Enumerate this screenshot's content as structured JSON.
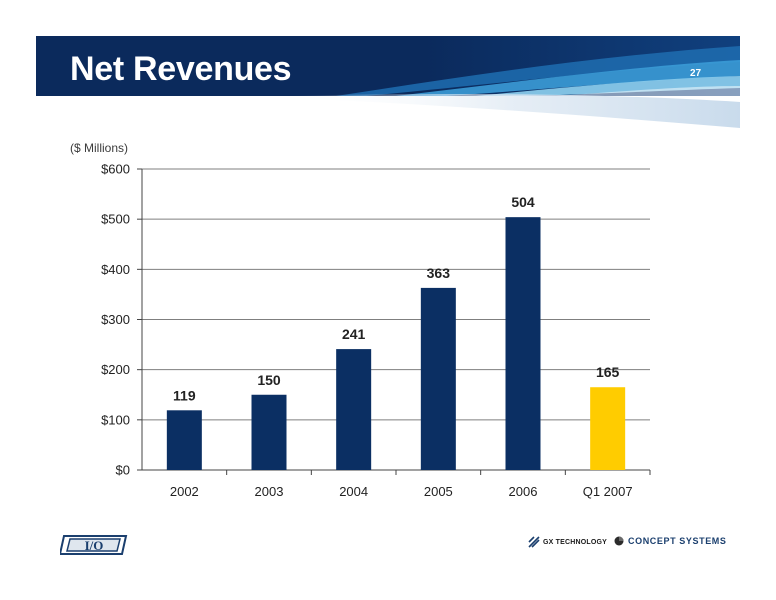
{
  "header": {
    "title": "Net Revenues",
    "page_number": "27"
  },
  "colors": {
    "banner_navy": "#0b2a5c",
    "bar_navy": "#0b2f63",
    "bar_highlight": "#ffcc00",
    "grid": "#7f7f7f"
  },
  "chart_data": {
    "type": "bar",
    "units_label": "($ Millions)",
    "categories": [
      "2002",
      "2003",
      "2004",
      "2005",
      "2006",
      "Q1 2007"
    ],
    "values": [
      119,
      150,
      241,
      363,
      504,
      165
    ],
    "data_labels": [
      "119",
      "150",
      "241",
      "363",
      "504",
      "165"
    ],
    "highlight_category": "Q1 2007",
    "ylim": [
      0,
      600
    ],
    "yticks": [
      0,
      100,
      200,
      300,
      400,
      500,
      600
    ],
    "ytick_labels": [
      "$0",
      "$100",
      "$200",
      "$300",
      "$400",
      "$500",
      "$600"
    ],
    "grid": true,
    "legend": "none"
  },
  "footer": {
    "logos": [
      {
        "name": "io-logo",
        "text": "I/O"
      },
      {
        "name": "gx-technology-logo",
        "text": "GX TECHNOLOGY"
      },
      {
        "name": "concept-systems-logo",
        "text": "CONCEPT SYSTEMS"
      }
    ]
  }
}
